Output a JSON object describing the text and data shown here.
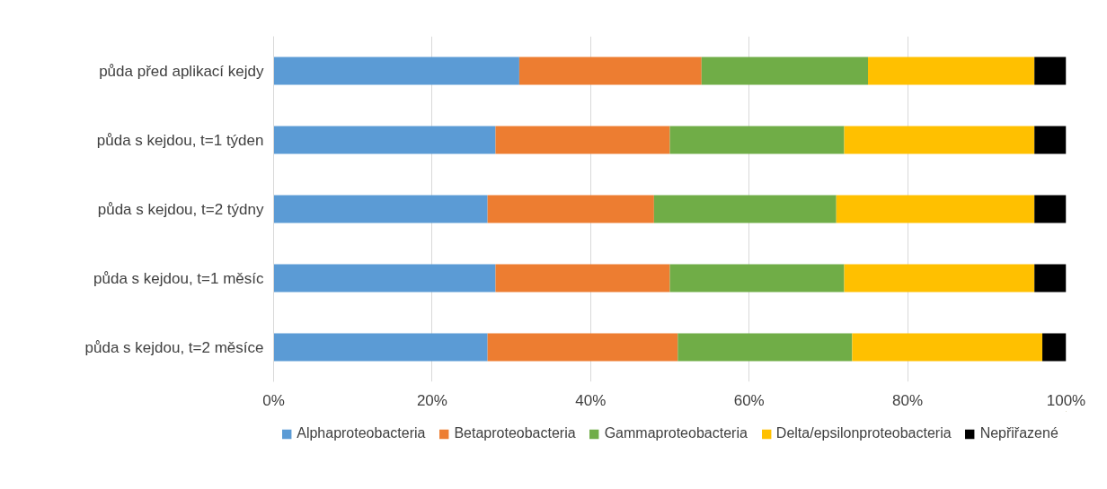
{
  "chart_data": {
    "type": "bar",
    "orientation": "horizontal",
    "stacked": true,
    "categories": [
      "půda před aplikací kejdy",
      "půda s kejdou, t=1 týden",
      "půda s kejdou, t=2 týdny",
      "půda s kejdou, t=1 měsíc",
      "půda s kejdou, t=2 měsíce"
    ],
    "series": [
      {
        "name": "Alphaproteobacteria",
        "color": "#5b9bd5",
        "values": [
          31,
          28,
          27,
          28,
          27
        ]
      },
      {
        "name": "Betaproteobacteria",
        "color": "#ed7d31",
        "values": [
          23,
          22,
          21,
          22,
          24
        ]
      },
      {
        "name": "Gammaproteobacteria",
        "color": "#70ad47",
        "values": [
          21,
          22,
          23,
          22,
          22
        ]
      },
      {
        "name": "Delta/epsilonproteobacteria",
        "color": "#ffc000",
        "values": [
          21,
          24,
          25,
          24,
          24
        ]
      },
      {
        "name": "Nepřiřazené",
        "color": "#000000",
        "values": [
          4,
          4,
          4,
          4,
          3
        ]
      }
    ],
    "xlim": [
      0,
      100
    ],
    "xticks": [
      {
        "value": 0,
        "label": "0%"
      },
      {
        "value": 20,
        "label": "20%"
      },
      {
        "value": 40,
        "label": "40%"
      },
      {
        "value": 60,
        "label": "60%"
      },
      {
        "value": 80,
        "label": "80%"
      },
      {
        "value": 100,
        "label": "100%"
      }
    ],
    "grid": "x",
    "legend": "bottom"
  }
}
